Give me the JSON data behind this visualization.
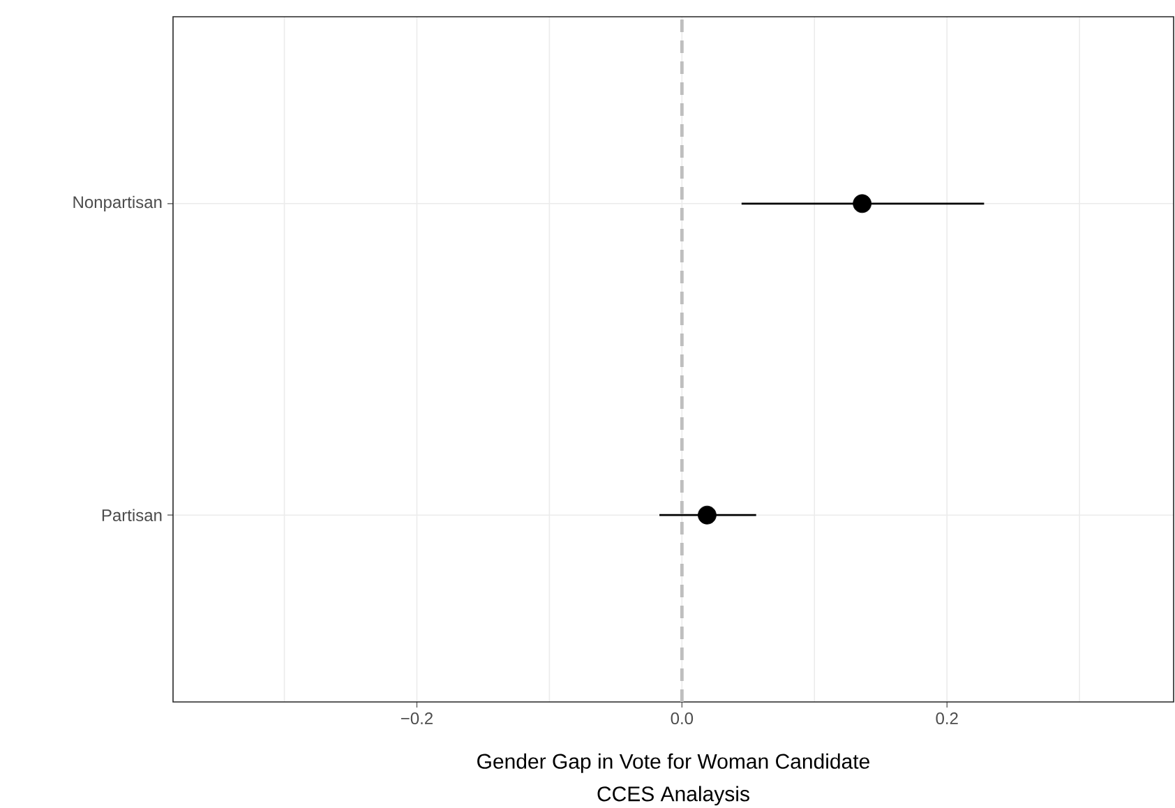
{
  "chart_data": {
    "type": "scatter",
    "orientation": "horizontal",
    "categories": [
      "Nonpartisan",
      "Partisan"
    ],
    "values": [
      0.136,
      0.019
    ],
    "errors": [
      [
        0.045,
        0.228
      ],
      [
        -0.017,
        0.056
      ]
    ],
    "color": "#000000",
    "marker": "circle",
    "xlim": [
      -0.384,
      0.371
    ],
    "xticks": [
      {
        "value": -0.2,
        "label": "−0.2"
      },
      {
        "value": 0,
        "label": "0.0"
      },
      {
        "value": 0.2,
        "label": "0.2"
      }
    ],
    "xlabel": "Gender Gap in Vote for Woman Candidate",
    "annotations": [
      "CCES Analaysis"
    ],
    "ref_lines": [
      {
        "axis": "x",
        "value": 0,
        "color": "#bebebe",
        "line_style": "dashed"
      }
    ],
    "grid": true
  }
}
